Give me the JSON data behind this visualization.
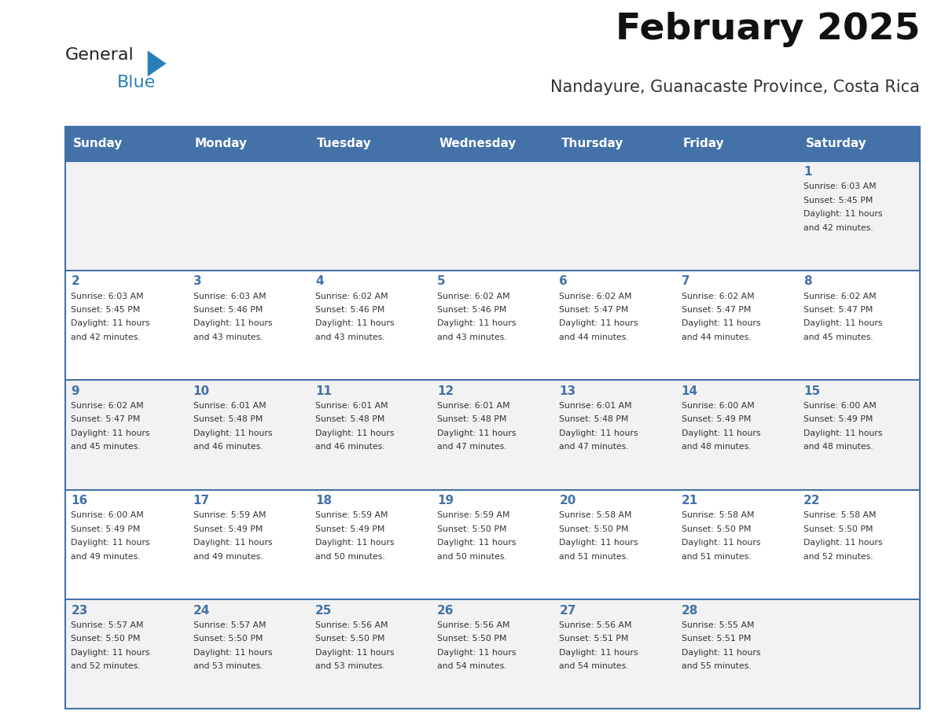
{
  "title": "February 2025",
  "subtitle": "Nandayure, Guanacaste Province, Costa Rica",
  "header_bg_color": "#4472A8",
  "header_text_color": "#FFFFFF",
  "cell_bg_color_1": "#F2F2F2",
  "cell_bg_color_2": "#FFFFFF",
  "day_number_color": "#4472A8",
  "text_color": "#333333",
  "border_color": "#4472A8",
  "days_of_week": [
    "Sunday",
    "Monday",
    "Tuesday",
    "Wednesday",
    "Thursday",
    "Friday",
    "Saturday"
  ],
  "logo_text1": "General",
  "logo_text2": "Blue",
  "logo_color1": "#222222",
  "logo_color2": "#2980B9",
  "logo_triangle_color": "#2980B9",
  "calendar_data": [
    [
      null,
      null,
      null,
      null,
      null,
      null,
      {
        "day": 1,
        "sunrise": "6:03 AM",
        "sunset": "5:45 PM",
        "daylight": "11 hours and 42 minutes."
      }
    ],
    [
      {
        "day": 2,
        "sunrise": "6:03 AM",
        "sunset": "5:45 PM",
        "daylight": "11 hours and 42 minutes."
      },
      {
        "day": 3,
        "sunrise": "6:03 AM",
        "sunset": "5:46 PM",
        "daylight": "11 hours and 43 minutes."
      },
      {
        "day": 4,
        "sunrise": "6:02 AM",
        "sunset": "5:46 PM",
        "daylight": "11 hours and 43 minutes."
      },
      {
        "day": 5,
        "sunrise": "6:02 AM",
        "sunset": "5:46 PM",
        "daylight": "11 hours and 43 minutes."
      },
      {
        "day": 6,
        "sunrise": "6:02 AM",
        "sunset": "5:47 PM",
        "daylight": "11 hours and 44 minutes."
      },
      {
        "day": 7,
        "sunrise": "6:02 AM",
        "sunset": "5:47 PM",
        "daylight": "11 hours and 44 minutes."
      },
      {
        "day": 8,
        "sunrise": "6:02 AM",
        "sunset": "5:47 PM",
        "daylight": "11 hours and 45 minutes."
      }
    ],
    [
      {
        "day": 9,
        "sunrise": "6:02 AM",
        "sunset": "5:47 PM",
        "daylight": "11 hours and 45 minutes."
      },
      {
        "day": 10,
        "sunrise": "6:01 AM",
        "sunset": "5:48 PM",
        "daylight": "11 hours and 46 minutes."
      },
      {
        "day": 11,
        "sunrise": "6:01 AM",
        "sunset": "5:48 PM",
        "daylight": "11 hours and 46 minutes."
      },
      {
        "day": 12,
        "sunrise": "6:01 AM",
        "sunset": "5:48 PM",
        "daylight": "11 hours and 47 minutes."
      },
      {
        "day": 13,
        "sunrise": "6:01 AM",
        "sunset": "5:48 PM",
        "daylight": "11 hours and 47 minutes."
      },
      {
        "day": 14,
        "sunrise": "6:00 AM",
        "sunset": "5:49 PM",
        "daylight": "11 hours and 48 minutes."
      },
      {
        "day": 15,
        "sunrise": "6:00 AM",
        "sunset": "5:49 PM",
        "daylight": "11 hours and 48 minutes."
      }
    ],
    [
      {
        "day": 16,
        "sunrise": "6:00 AM",
        "sunset": "5:49 PM",
        "daylight": "11 hours and 49 minutes."
      },
      {
        "day": 17,
        "sunrise": "5:59 AM",
        "sunset": "5:49 PM",
        "daylight": "11 hours and 49 minutes."
      },
      {
        "day": 18,
        "sunrise": "5:59 AM",
        "sunset": "5:49 PM",
        "daylight": "11 hours and 50 minutes."
      },
      {
        "day": 19,
        "sunrise": "5:59 AM",
        "sunset": "5:50 PM",
        "daylight": "11 hours and 50 minutes."
      },
      {
        "day": 20,
        "sunrise": "5:58 AM",
        "sunset": "5:50 PM",
        "daylight": "11 hours and 51 minutes."
      },
      {
        "day": 21,
        "sunrise": "5:58 AM",
        "sunset": "5:50 PM",
        "daylight": "11 hours and 51 minutes."
      },
      {
        "day": 22,
        "sunrise": "5:58 AM",
        "sunset": "5:50 PM",
        "daylight": "11 hours and 52 minutes."
      }
    ],
    [
      {
        "day": 23,
        "sunrise": "5:57 AM",
        "sunset": "5:50 PM",
        "daylight": "11 hours and 52 minutes."
      },
      {
        "day": 24,
        "sunrise": "5:57 AM",
        "sunset": "5:50 PM",
        "daylight": "11 hours and 53 minutes."
      },
      {
        "day": 25,
        "sunrise": "5:56 AM",
        "sunset": "5:50 PM",
        "daylight": "11 hours and 53 minutes."
      },
      {
        "day": 26,
        "sunrise": "5:56 AM",
        "sunset": "5:50 PM",
        "daylight": "11 hours and 54 minutes."
      },
      {
        "day": 27,
        "sunrise": "5:56 AM",
        "sunset": "5:51 PM",
        "daylight": "11 hours and 54 minutes."
      },
      {
        "day": 28,
        "sunrise": "5:55 AM",
        "sunset": "5:51 PM",
        "daylight": "11 hours and 55 minutes."
      },
      null
    ]
  ]
}
